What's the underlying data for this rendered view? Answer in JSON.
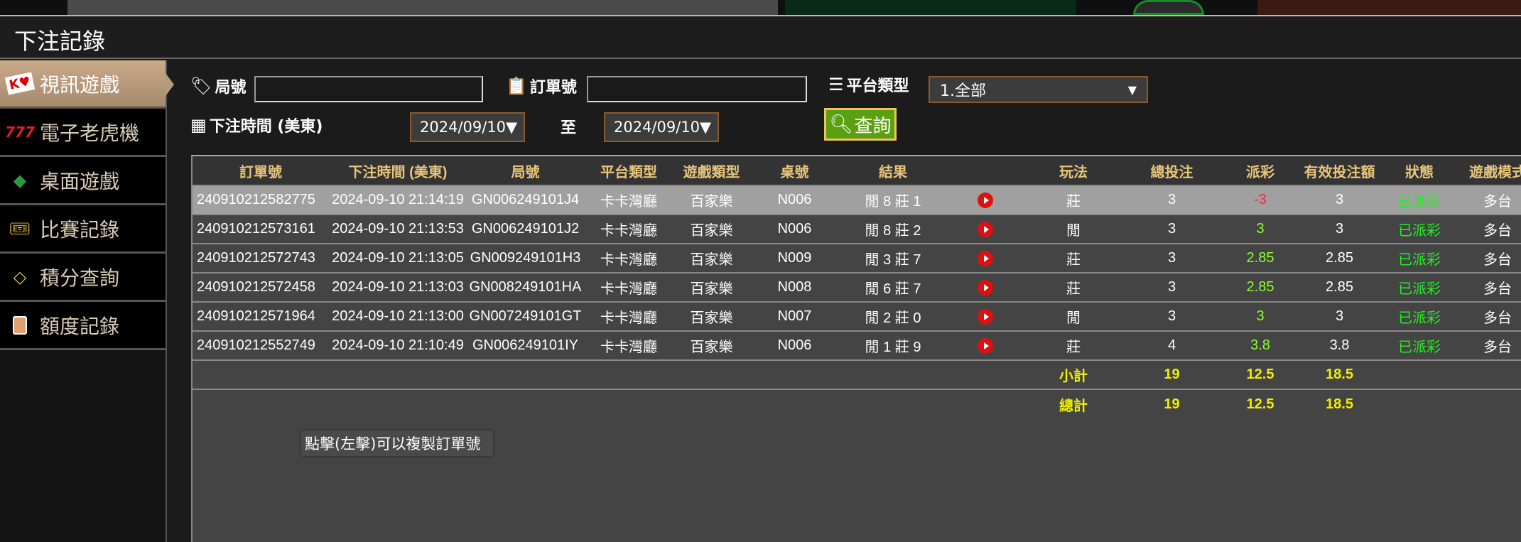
{
  "header": {
    "title": "下注記錄"
  },
  "sidebar": {
    "items": [
      {
        "label": "視訊遊戲",
        "icon": "playing-cards-icon",
        "active": true
      },
      {
        "label": "電子老虎機",
        "icon": "slot-777-icon"
      },
      {
        "label": "桌面遊戲",
        "icon": "cards-chips-icon"
      },
      {
        "label": "比賽記錄",
        "icon": "ticket-icon"
      },
      {
        "label": "積分查詢",
        "icon": "diamond-icon"
      },
      {
        "label": "額度記錄",
        "icon": "document-icon"
      }
    ]
  },
  "filters": {
    "round_label": "局號",
    "round_value": "",
    "order_label": "訂單號",
    "order_value": "",
    "platform_label": "平台類型",
    "platform_value": "1.全部",
    "time_label": "下注時間 (美東)",
    "date_from": "2024/09/10▼",
    "to_label": "至",
    "date_to": "2024/09/10▼",
    "query_label": "查詢"
  },
  "colors": {
    "accent": "#e8c57a",
    "positive": "#8cff2a",
    "negative": "#ff2244",
    "status": "#22ee22",
    "total": "#f0f000",
    "query_button": "#5aa010"
  },
  "table": {
    "headers": [
      "訂單號",
      "下注時間 (美東)",
      "局號",
      "平台類型",
      "遊戲類型",
      "桌號",
      "結果",
      "",
      "玩法",
      "總投注",
      "派彩",
      "有效投注額",
      "狀態",
      "遊戲模式"
    ],
    "rows": [
      {
        "order": "240910212582775",
        "time": "2024-09-10 21:14:19",
        "round": "GN006249101J4",
        "platform": "卡卡灣廳",
        "game": "百家樂",
        "table": "N006",
        "result": "閒 8 莊 1",
        "play": "莊",
        "bet": "3",
        "payout": "-3",
        "valid": "3",
        "status": "已派彩",
        "mode": "多台"
      },
      {
        "order": "240910212573161",
        "time": "2024-09-10 21:13:53",
        "round": "GN006249101J2",
        "platform": "卡卡灣廳",
        "game": "百家樂",
        "table": "N006",
        "result": "閒 8 莊 2",
        "play": "閒",
        "bet": "3",
        "payout": "3",
        "valid": "3",
        "status": "已派彩",
        "mode": "多台"
      },
      {
        "order": "240910212572743",
        "time": "2024-09-10 21:13:05",
        "round": "GN009249101H3",
        "platform": "卡卡灣廳",
        "game": "百家樂",
        "table": "N009",
        "result": "閒 3 莊 7",
        "play": "莊",
        "bet": "3",
        "payout": "2.85",
        "valid": "2.85",
        "status": "已派彩",
        "mode": "多台"
      },
      {
        "order": "240910212572458",
        "time": "2024-09-10 21:13:03",
        "round": "GN008249101HA",
        "platform": "卡卡灣廳",
        "game": "百家樂",
        "table": "N008",
        "result": "閒 6 莊 7",
        "play": "莊",
        "bet": "3",
        "payout": "2.85",
        "valid": "2.85",
        "status": "已派彩",
        "mode": "多台"
      },
      {
        "order": "240910212571964",
        "time": "2024-09-10 21:13:00",
        "round": "GN007249101GT",
        "platform": "卡卡灣廳",
        "game": "百家樂",
        "table": "N007",
        "result": "閒 2 莊 0",
        "play": "閒",
        "bet": "3",
        "payout": "3",
        "valid": "3",
        "status": "已派彩",
        "mode": "多台"
      },
      {
        "order": "240910212552749",
        "time": "2024-09-10 21:10:49",
        "round": "GN006249101IY",
        "platform": "卡卡灣廳",
        "game": "百家樂",
        "table": "N006",
        "result": "閒 1 莊 9",
        "play": "莊",
        "bet": "4",
        "payout": "3.8",
        "valid": "3.8",
        "status": "已派彩",
        "mode": "多台"
      }
    ],
    "subtotal": {
      "label": "小計",
      "bet": "19",
      "payout": "12.5",
      "valid": "18.5"
    },
    "total": {
      "label": "總計",
      "bet": "19",
      "payout": "12.5",
      "valid": "18.5"
    }
  },
  "tooltip": "點擊(左擊)可以複製訂單號"
}
